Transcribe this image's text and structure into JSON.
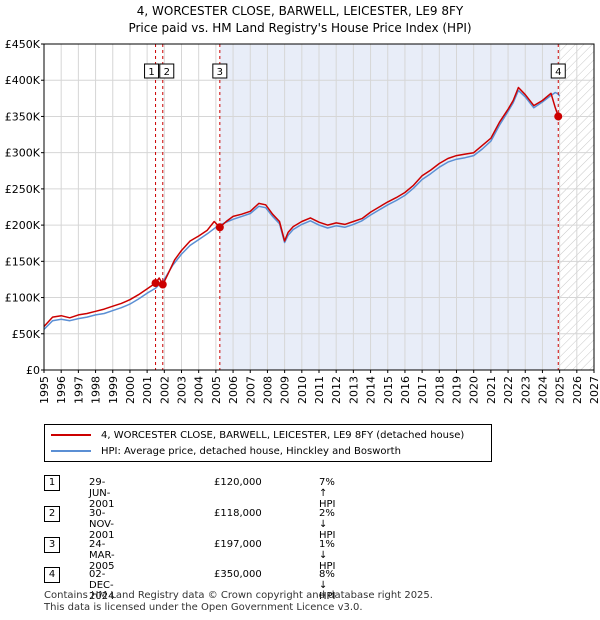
{
  "title_line1": "4, WORCESTER CLOSE, BARWELL, LEICESTER, LE9 8FY",
  "title_line2": "Price paid vs. HM Land Registry's House Price Index (HPI)",
  "colors": {
    "property_line": "#cc0000",
    "hpi_line": "#5b8fd4",
    "shade": "#e8edf8",
    "event_line": "#cc0000",
    "marker": "#cc0000"
  },
  "chart_data": {
    "type": "line",
    "x_label_years": [
      "1995",
      "1996",
      "1997",
      "1998",
      "1999",
      "2000",
      "2001",
      "2002",
      "2003",
      "2004",
      "2005",
      "2006",
      "2007",
      "2008",
      "2009",
      "2010",
      "2011",
      "2012",
      "2013",
      "2014",
      "2015",
      "2016",
      "2017",
      "2018",
      "2019",
      "2020",
      "2021",
      "2022",
      "2023",
      "2024",
      "2025",
      "2026",
      "2027"
    ],
    "xlim": [
      1995,
      2027
    ],
    "ylim": [
      0,
      450000
    ],
    "y_ticks": [
      0,
      50000,
      100000,
      150000,
      200000,
      250000,
      300000,
      350000,
      400000,
      450000
    ],
    "y_tick_labels": [
      "£0",
      "£50K",
      "£100K",
      "£150K",
      "£200K",
      "£250K",
      "£300K",
      "£350K",
      "£400K",
      "£450K"
    ],
    "shaded_region": [
      2005.23,
      2024.92
    ],
    "hatched_region_start": 2024.92,
    "series": [
      {
        "name": "4, WORCESTER CLOSE, BARWELL, LEICESTER, LE9 8FY (detached house)",
        "x": [
          1995.0,
          1995.5,
          1996.0,
          1996.5,
          1997.0,
          1997.5,
          1998.0,
          1998.5,
          1999.0,
          1999.5,
          2000.0,
          2000.5,
          2001.0,
          2001.49,
          2001.7,
          2001.91,
          2002.2,
          2002.6,
          2003.0,
          2003.5,
          2004.0,
          2004.5,
          2004.9,
          2005.23,
          2005.6,
          2006.0,
          2006.5,
          2007.0,
          2007.5,
          2007.9,
          2008.3,
          2008.7,
          2009.0,
          2009.2,
          2009.5,
          2010.0,
          2010.5,
          2011.0,
          2011.5,
          2012.0,
          2012.5,
          2013.0,
          2013.5,
          2014.0,
          2014.5,
          2015.0,
          2015.5,
          2016.0,
          2016.5,
          2017.0,
          2017.5,
          2018.0,
          2018.5,
          2019.0,
          2019.5,
          2020.0,
          2020.5,
          2021.0,
          2021.5,
          2022.0,
          2022.3,
          2022.6,
          2023.0,
          2023.5,
          2024.0,
          2024.5,
          2024.75,
          2024.92
        ],
        "values": [
          60000,
          73000,
          75000,
          72000,
          76000,
          78000,
          81000,
          84000,
          88000,
          92000,
          97000,
          104000,
          112000,
          120000,
          127000,
          118000,
          132000,
          152000,
          165000,
          178000,
          185000,
          193000,
          205000,
          197000,
          205000,
          212000,
          215000,
          219000,
          230000,
          228000,
          215000,
          205000,
          178000,
          190000,
          198000,
          205000,
          210000,
          204000,
          200000,
          203000,
          201000,
          205000,
          209000,
          218000,
          225000,
          232000,
          238000,
          245000,
          255000,
          268000,
          276000,
          285000,
          292000,
          296000,
          298000,
          300000,
          310000,
          320000,
          342000,
          360000,
          372000,
          390000,
          380000,
          365000,
          372000,
          382000,
          362000,
          350000
        ]
      },
      {
        "name": "HPI: Average price, detached house, Hinckley and Bosworth",
        "x": [
          1995.0,
          1995.5,
          1996.0,
          1996.5,
          1997.0,
          1997.5,
          1998.0,
          1998.5,
          1999.0,
          1999.5,
          2000.0,
          2000.5,
          2001.0,
          2001.5,
          2002.0,
          2002.5,
          2003.0,
          2003.5,
          2004.0,
          2004.5,
          2005.0,
          2005.5,
          2006.0,
          2006.5,
          2007.0,
          2007.5,
          2007.9,
          2008.3,
          2008.7,
          2009.0,
          2009.2,
          2009.5,
          2010.0,
          2010.5,
          2011.0,
          2011.5,
          2012.0,
          2012.5,
          2013.0,
          2013.5,
          2014.0,
          2014.5,
          2015.0,
          2015.5,
          2016.0,
          2016.5,
          2017.0,
          2017.5,
          2018.0,
          2018.5,
          2019.0,
          2019.5,
          2020.0,
          2020.5,
          2021.0,
          2021.5,
          2022.0,
          2022.3,
          2022.6,
          2023.0,
          2023.5,
          2024.0,
          2024.5,
          2024.75,
          2024.92,
          2025.0
        ],
        "values": [
          56000,
          68000,
          70000,
          68000,
          71000,
          73000,
          76000,
          78000,
          82000,
          86000,
          91000,
          98000,
          106000,
          113000,
          125000,
          145000,
          160000,
          172000,
          180000,
          188000,
          197000,
          203000,
          208000,
          212000,
          216000,
          226000,
          224000,
          212000,
          202000,
          176000,
          186000,
          194000,
          201000,
          206000,
          200000,
          196000,
          199000,
          197000,
          201000,
          206000,
          214000,
          221000,
          228000,
          234000,
          241000,
          251000,
          263000,
          271000,
          280000,
          287000,
          291000,
          293000,
          296000,
          305000,
          316000,
          338000,
          357000,
          369000,
          386000,
          377000,
          362000,
          370000,
          379000,
          383000,
          381000,
          378000
        ]
      }
    ],
    "events": [
      {
        "num": "1",
        "x": 2001.49,
        "value": 120000,
        "date": "29-JUN-2001",
        "price": "£120,000",
        "hpi": "7% ↑ HPI"
      },
      {
        "num": "2",
        "x": 2001.91,
        "value": 118000,
        "date": "30-NOV-2001",
        "price": "£118,000",
        "hpi": "2% ↓ HPI"
      },
      {
        "num": "3",
        "x": 2005.23,
        "value": 197000,
        "date": "24-MAR-2005",
        "price": "£197,000",
        "hpi": "1% ↓ HPI"
      },
      {
        "num": "4",
        "x": 2024.92,
        "value": 350000,
        "date": "02-DEC-2024",
        "price": "£350,000",
        "hpi": "8% ↓ HPI"
      }
    ]
  },
  "legend": {
    "property": "4, WORCESTER CLOSE, BARWELL, LEICESTER, LE9 8FY (detached house)",
    "hpi": "HPI: Average price, detached house, Hinckley and Bosworth"
  },
  "footer_line1": "Contains HM Land Registry data © Crown copyright and database right 2025.",
  "footer_line2": "This data is licensed under the Open Government Licence v3.0."
}
